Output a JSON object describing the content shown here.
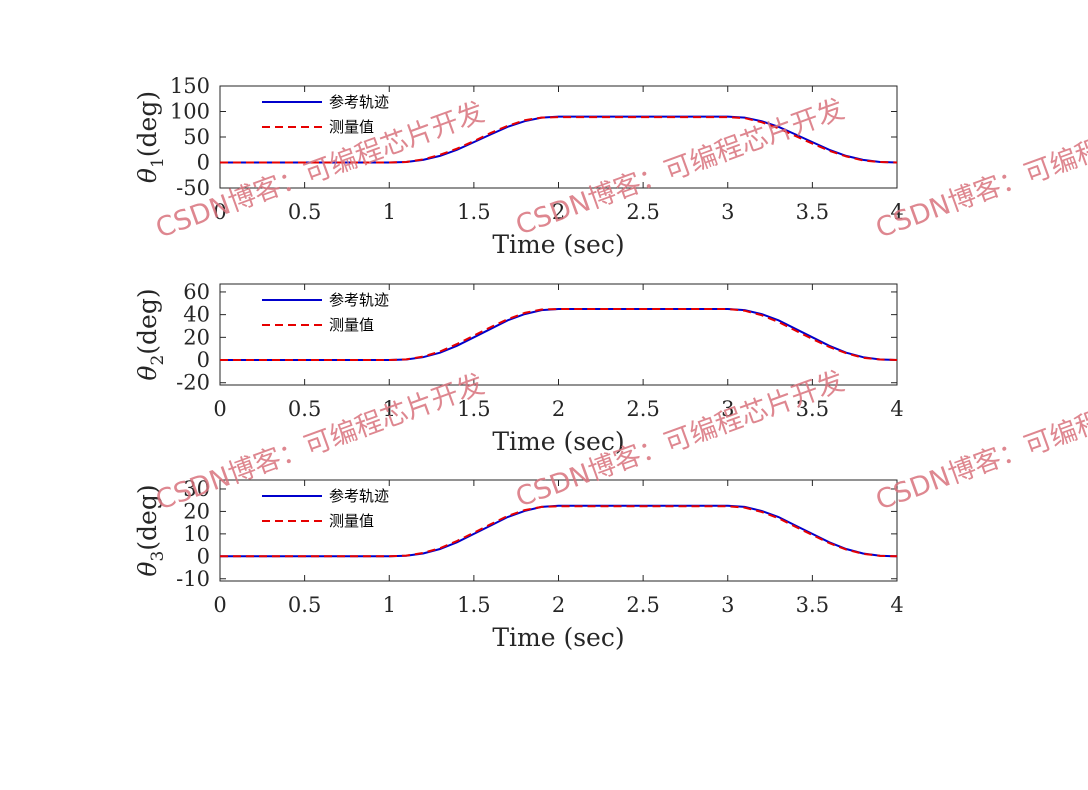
{
  "chart_data": [
    {
      "type": "line",
      "ylabel_symbol": "θ",
      "ylabel_subscript": "1",
      "ylabel_unit": "(deg)",
      "xlabel": "Time (sec)",
      "xlim": [
        0,
        4
      ],
      "ylim": [
        -50,
        150
      ],
      "xticks": [
        "0",
        "0.5",
        "1",
        "1.5",
        "2",
        "2.5",
        "3",
        "3.5",
        "4"
      ],
      "yticks": [
        "-50",
        "0",
        "50",
        "100",
        "150"
      ],
      "series": [
        {
          "name": "参考轨迹",
          "color": "#0000cc",
          "style": "solid",
          "x": [
            0,
            1.0,
            1.1,
            1.2,
            1.3,
            1.4,
            1.5,
            1.6,
            1.7,
            1.8,
            1.9,
            2.0,
            3.0,
            3.1,
            3.2,
            3.3,
            3.4,
            3.5,
            3.6,
            3.7,
            3.8,
            3.9,
            4.0
          ],
          "values": [
            0,
            0,
            1,
            5,
            13,
            25,
            40,
            55,
            70,
            81,
            88,
            90,
            90,
            88,
            81,
            70,
            55,
            40,
            25,
            13,
            5,
            1,
            0
          ]
        },
        {
          "name": "测量值",
          "color": "#e60000",
          "style": "dashed",
          "x": [
            0,
            1.0,
            1.1,
            1.2,
            1.3,
            1.4,
            1.5,
            1.6,
            1.7,
            1.8,
            1.9,
            2.0,
            3.0,
            3.1,
            3.2,
            3.3,
            3.4,
            3.5,
            3.6,
            3.7,
            3.8,
            3.9,
            4.0
          ],
          "values": [
            0,
            0,
            1,
            6,
            15,
            27,
            42,
            58,
            72,
            83,
            88,
            89,
            89,
            87,
            79,
            67,
            52,
            37,
            23,
            12,
            4,
            1,
            0
          ]
        }
      ],
      "legend": [
        "参考轨迹",
        "测量值"
      ],
      "legend_position": "top-left"
    },
    {
      "type": "line",
      "ylabel_symbol": "θ",
      "ylabel_subscript": "2",
      "ylabel_unit": "(deg)",
      "xlabel": "Time (sec)",
      "xlim": [
        0,
        4
      ],
      "ylim": [
        -22,
        67
      ],
      "xticks": [
        "0",
        "0.5",
        "1",
        "1.5",
        "2",
        "2.5",
        "3",
        "3.5",
        "4"
      ],
      "yticks": [
        "-20",
        "0",
        "20",
        "40",
        "60"
      ],
      "series": [
        {
          "name": "参考轨迹",
          "color": "#0000cc",
          "style": "solid",
          "x": [
            0,
            1.0,
            1.1,
            1.2,
            1.3,
            1.4,
            1.5,
            1.6,
            1.7,
            1.8,
            1.9,
            2.0,
            3.0,
            3.1,
            3.2,
            3.3,
            3.4,
            3.5,
            3.6,
            3.7,
            3.8,
            3.9,
            4.0
          ],
          "values": [
            0,
            0,
            0.5,
            2.5,
            6.5,
            12.5,
            20,
            27.5,
            35,
            40.5,
            44,
            45,
            45,
            44,
            40.5,
            35,
            27.5,
            20,
            12.5,
            6.5,
            2.5,
            0.5,
            0
          ]
        },
        {
          "name": "测量值",
          "color": "#e60000",
          "style": "dashed",
          "x": [
            0,
            1.0,
            1.1,
            1.2,
            1.3,
            1.4,
            1.5,
            1.6,
            1.7,
            1.8,
            1.9,
            2.0,
            3.0,
            3.1,
            3.2,
            3.3,
            3.4,
            3.5,
            3.6,
            3.7,
            3.8,
            3.9,
            4.0
          ],
          "values": [
            0,
            0,
            0.6,
            3,
            7.5,
            14,
            21.5,
            29,
            36,
            41.5,
            44.5,
            45,
            45,
            43.5,
            39.5,
            33.5,
            26,
            18.5,
            11.5,
            6,
            2,
            0.5,
            0
          ]
        }
      ],
      "legend": [
        "参考轨迹",
        "测量值"
      ],
      "legend_position": "top-left"
    },
    {
      "type": "line",
      "ylabel_symbol": "θ",
      "ylabel_subscript": "3",
      "ylabel_unit": "(deg)",
      "xlabel": "Time (sec)",
      "xlim": [
        0,
        4
      ],
      "ylim": [
        -11,
        34
      ],
      "xticks": [
        "0",
        "0.5",
        "1",
        "1.5",
        "2",
        "2.5",
        "3",
        "3.5",
        "4"
      ],
      "yticks": [
        "-10",
        "0",
        "10",
        "20",
        "30"
      ],
      "series": [
        {
          "name": "参考轨迹",
          "color": "#0000cc",
          "style": "solid",
          "x": [
            0,
            1.0,
            1.1,
            1.2,
            1.3,
            1.4,
            1.5,
            1.6,
            1.7,
            1.8,
            1.9,
            2.0,
            3.0,
            3.1,
            3.2,
            3.3,
            3.4,
            3.5,
            3.6,
            3.7,
            3.8,
            3.9,
            4.0
          ],
          "values": [
            0,
            0,
            0.25,
            1.25,
            3.25,
            6.25,
            10,
            13.75,
            17.5,
            20.25,
            22,
            22.5,
            22.5,
            22,
            20.25,
            17.5,
            13.75,
            10,
            6.25,
            3.25,
            1.25,
            0.25,
            0
          ]
        },
        {
          "name": "测量值",
          "color": "#e60000",
          "style": "dashed",
          "x": [
            0,
            1.0,
            1.1,
            1.2,
            1.3,
            1.4,
            1.5,
            1.6,
            1.7,
            1.8,
            1.9,
            2.0,
            3.0,
            3.1,
            3.2,
            3.3,
            3.4,
            3.5,
            3.6,
            3.7,
            3.8,
            3.9,
            4.0
          ],
          "values": [
            0,
            0,
            0.3,
            1.5,
            3.6,
            6.8,
            10.5,
            14.3,
            18,
            20.6,
            22,
            22.3,
            22.3,
            21.7,
            19.8,
            17,
            13.2,
            9.5,
            5.9,
            3,
            1.1,
            0.2,
            0
          ]
        }
      ],
      "legend": [
        "参考轨迹",
        "测量值"
      ],
      "legend_position": "top-left"
    }
  ],
  "watermark_text": "CSDN博客：可编程芯片开发",
  "colors": {
    "axes": "#262626",
    "reference": "#0000cc",
    "measured": "#e60000",
    "watermark": "#d9737d"
  }
}
